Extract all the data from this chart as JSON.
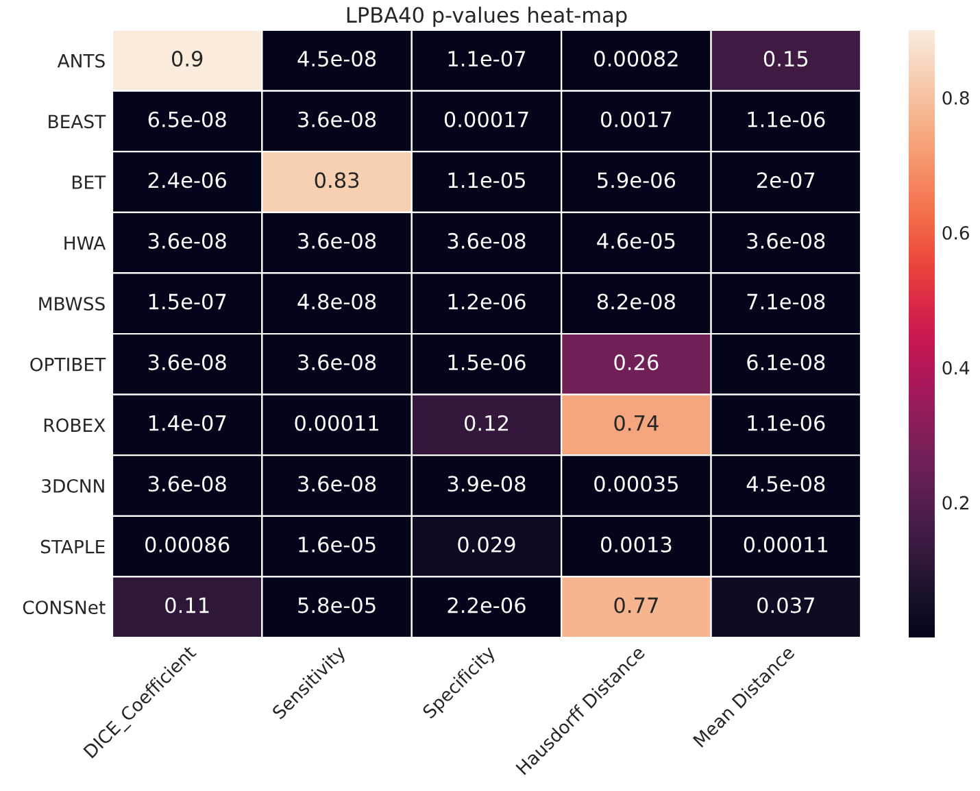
{
  "chart_data": {
    "type": "heatmap",
    "title": "LPBA40 p-values heat-map",
    "categories": [
      "DICE_Coefficient",
      "Sensitivity",
      "Specificity",
      "Hausdorff Distance",
      "Mean Distance"
    ],
    "y_categories": [
      "ANTS",
      "BEAST",
      "BET",
      "HWA",
      "MBWSS",
      "OPTIBET",
      "ROBEX",
      "3DCNN",
      "STAPLE",
      "CONSNet"
    ],
    "cells": [
      [
        0.9,
        4.5e-08,
        1.1e-07,
        0.00082,
        0.15
      ],
      [
        6.5e-08,
        3.6e-08,
        0.00017,
        0.0017,
        1.1e-06
      ],
      [
        2.4e-06,
        0.83,
        1.1e-05,
        5.9e-06,
        2e-07
      ],
      [
        3.6e-08,
        3.6e-08,
        3.6e-08,
        4.6e-05,
        3.6e-08
      ],
      [
        1.5e-07,
        4.8e-08,
        1.2e-06,
        8.2e-08,
        7.1e-08
      ],
      [
        3.6e-08,
        3.6e-08,
        1.5e-06,
        0.26,
        6.1e-08
      ],
      [
        1.4e-07,
        0.00011,
        0.12,
        0.74,
        1.1e-06
      ],
      [
        3.6e-08,
        3.6e-08,
        3.9e-08,
        0.00035,
        4.5e-08
      ],
      [
        0.00086,
        1.6e-05,
        0.029,
        0.0013,
        0.00011
      ],
      [
        0.11,
        5.8e-05,
        2.2e-06,
        0.77,
        0.037
      ]
    ],
    "data_labels": true,
    "clim": [
      3.6e-08,
      0.9
    ],
    "cticks": [
      0.2,
      0.4,
      0.6,
      0.8
    ]
  }
}
